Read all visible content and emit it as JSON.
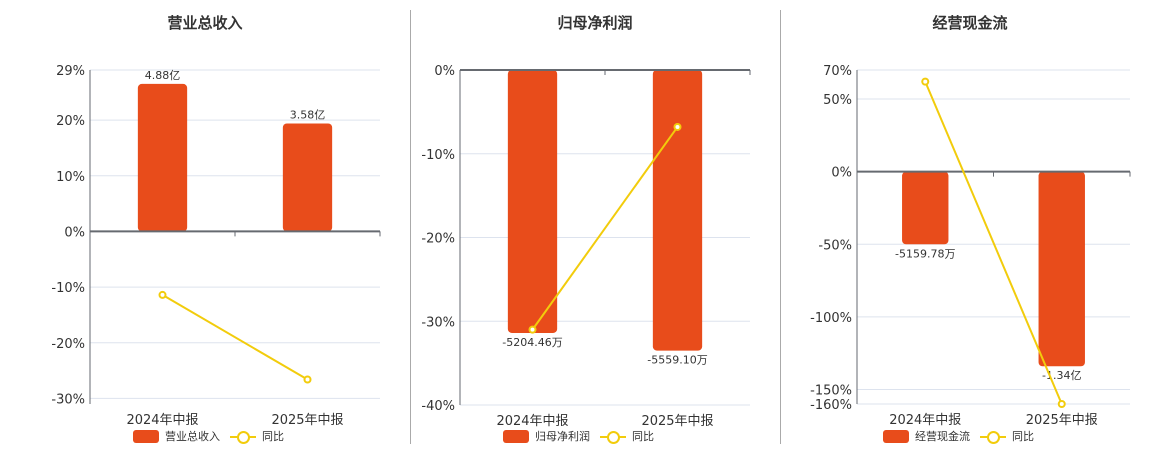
{
  "colors": {
    "bar": "#e84c1b",
    "line": "#f2cc0c",
    "grid": "#dde3ee",
    "axis": "#666a70"
  },
  "legend": {
    "yoy_label": "同比"
  },
  "chart_data": [
    {
      "type": "bar",
      "title": "营业总收入",
      "categories": [
        "2024年中报",
        "2025年中报"
      ],
      "series": [
        {
          "name": "营业总收入",
          "type": "bar",
          "values": [
            4.88,
            3.58
          ],
          "unit": "亿",
          "labels": [
            "4.88亿",
            "3.58亿"
          ],
          "bar_pct": [
            26.5,
            19.4
          ]
        },
        {
          "name": "同比",
          "type": "line",
          "values": [
            -11.4,
            -26.6
          ],
          "unit": "%"
        }
      ],
      "yticks": [
        29,
        20,
        10,
        0,
        -10,
        -20,
        -30
      ],
      "ylim": [
        -31,
        29
      ],
      "ylabel": "%"
    },
    {
      "type": "bar",
      "title": "归母净利润",
      "categories": [
        "2024年中报",
        "2025年中报"
      ],
      "series": [
        {
          "name": "归母净利润",
          "type": "bar",
          "values": [
            -5204.46,
            -5559.1
          ],
          "unit": "万",
          "labels": [
            "-5204.46万",
            "-5559.10万"
          ],
          "bar_pct": [
            -31.4,
            -33.5
          ]
        },
        {
          "name": "同比",
          "type": "line",
          "values": [
            -31.0,
            -6.8
          ],
          "unit": "%"
        }
      ],
      "yticks": [
        0,
        -10,
        -20,
        -30,
        -40
      ],
      "ylim": [
        -40,
        0
      ],
      "ylabel": "%"
    },
    {
      "type": "bar",
      "title": "经营现金流",
      "categories": [
        "2024年中报",
        "2025年中报"
      ],
      "series": [
        {
          "name": "经营现金流",
          "type": "bar",
          "values": [
            -5159.78,
            -13400
          ],
          "unit": "万",
          "labels": [
            "-5159.78万",
            "-1.34亿"
          ],
          "bar_pct": [
            -50,
            -134
          ]
        },
        {
          "name": "同比",
          "type": "line",
          "values": [
            62,
            -160
          ],
          "unit": "%"
        }
      ],
      "yticks": [
        70,
        50,
        0,
        -50,
        -100,
        -150,
        -160
      ],
      "ylim": [
        -160,
        70
      ],
      "ylabel": "%"
    }
  ]
}
